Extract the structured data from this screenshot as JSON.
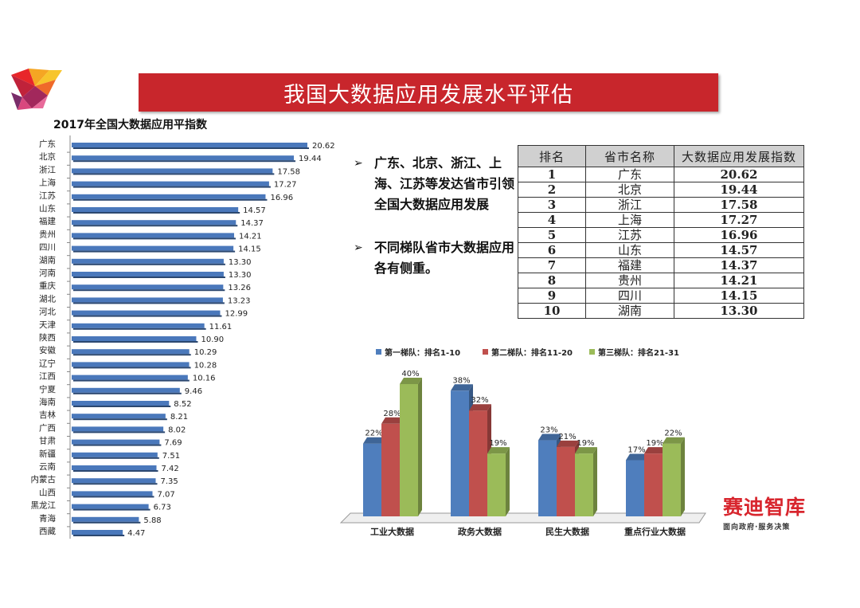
{
  "title": "我国大数据应用发展水平评估",
  "left_chart_title": "2017年全国大数据应用平指数",
  "bullets": [
    "广东、北京、浙江、上海、江苏等发达省市引领全国大数据应用发展",
    "不同梯队省市大数据应用各有侧重。"
  ],
  "table": {
    "headers": [
      "排名",
      "省市名称",
      "大数据应用发展指数"
    ],
    "rows": [
      [
        "1",
        "广东",
        "20.62"
      ],
      [
        "2",
        "北京",
        "19.44"
      ],
      [
        "3",
        "浙江",
        "17.58"
      ],
      [
        "4",
        "上海",
        "17.27"
      ],
      [
        "5",
        "江苏",
        "16.96"
      ],
      [
        "6",
        "山东",
        "14.57"
      ],
      [
        "7",
        "福建",
        "14.37"
      ],
      [
        "8",
        "贵州",
        "14.21"
      ],
      [
        "9",
        "四川",
        "14.15"
      ],
      [
        "10",
        "湖南",
        "13.30"
      ]
    ]
  },
  "brand": {
    "name": "赛迪智库",
    "slogan": "面向政府·服务决策"
  },
  "colors": {
    "banner": "#c8262c",
    "hbar": "#4a78bb",
    "series1": "#4f7ebd",
    "series2": "#c0504d",
    "series3": "#9bbb59"
  },
  "chart_data": [
    {
      "type": "bar",
      "orientation": "horizontal",
      "title": "2017年全国大数据应用平指数",
      "categories": [
        "广东",
        "北京",
        "浙江",
        "上海",
        "江苏",
        "山东",
        "福建",
        "贵州",
        "四川",
        "湖南",
        "河南",
        "重庆",
        "湖北",
        "河北",
        "天津",
        "陕西",
        "安徽",
        "辽宁",
        "江西",
        "宁夏",
        "海南",
        "吉林",
        "广西",
        "甘肃",
        "新疆",
        "云南",
        "内蒙古",
        "山西",
        "黑龙江",
        "青海",
        "西藏"
      ],
      "values": [
        20.62,
        19.44,
        17.58,
        17.27,
        16.96,
        14.57,
        14.37,
        14.21,
        14.15,
        13.3,
        13.3,
        13.26,
        13.23,
        12.99,
        11.61,
        10.9,
        10.29,
        10.28,
        10.16,
        9.46,
        8.52,
        8.21,
        8.02,
        7.69,
        7.51,
        7.42,
        7.35,
        7.07,
        6.73,
        5.88,
        4.47
      ],
      "value_labels": [
        "20.62",
        "19.44",
        "17.58",
        "17.27",
        "16.96",
        "14.57",
        "14.37",
        "14.21",
        "14.15",
        "13.30",
        "13.30",
        "13.26",
        "13.23",
        "12.99",
        "11.61",
        "10.90",
        "10.29",
        "10.28",
        "10.16",
        "9.46",
        "8.52",
        "8.21",
        "8.02",
        "7.69",
        "7.51",
        "7.42",
        "7.35",
        "7.07",
        "6.73",
        "5.88",
        "4.47"
      ],
      "xlim": [
        0,
        22
      ]
    },
    {
      "type": "bar",
      "categories": [
        "工业大数据",
        "政务大数据",
        "民生大数据",
        "重点行业大数据"
      ],
      "series": [
        {
          "name": "第一梯队：排名1-10",
          "values": [
            22,
            38,
            23,
            17
          ]
        },
        {
          "name": "第二梯队：排名11-20",
          "values": [
            28,
            32,
            21,
            19
          ]
        },
        {
          "name": "第三梯队：排名21-31",
          "values": [
            40,
            19,
            19,
            22
          ]
        }
      ],
      "value_suffix": "%",
      "ylim": [
        0,
        40
      ],
      "legend": "top"
    }
  ]
}
